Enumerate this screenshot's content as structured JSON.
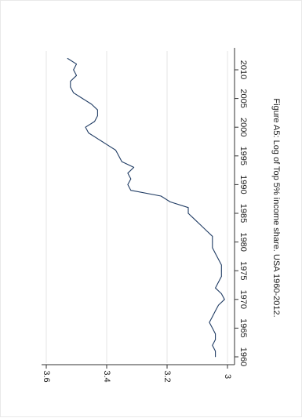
{
  "figure": {
    "caption": "Figure A5: Log of Top 5% income share. USA 1960-2012."
  },
  "colors": {
    "line": "#1f3b63",
    "axis": "#333333",
    "grid": "#e6e6e6",
    "text": "#222222",
    "background": "#ffffff"
  },
  "chart_data": {
    "type": "line",
    "orientation": "rotated 90 degrees clockwise (years run top-to-bottom along the right, values increase right-to-left)",
    "title": "Figure A5: Log of Top 5% income share. USA 1960-2012.",
    "xlabel": "",
    "ylabel": "",
    "xlim": [
      1959,
      2013
    ],
    "ylim": [
      3.0,
      3.6
    ],
    "grid": true,
    "x_ticks": [
      1960,
      1965,
      1970,
      1975,
      1980,
      1985,
      1990,
      1995,
      2000,
      2005,
      2010
    ],
    "y_ticks": [
      3.0,
      3.2,
      3.4,
      3.6
    ],
    "x_tick_labels": [
      "1960",
      "1965",
      "1970",
      "1975",
      "1980",
      "1985",
      "1990",
      "1995",
      "2000",
      "2005",
      "2010"
    ],
    "y_tick_labels": [
      "3",
      "3.2",
      "3.4",
      "3.6"
    ],
    "series": [
      {
        "x": [
          1960,
          1961,
          1962,
          1963,
          1964,
          1965,
          1966,
          1967,
          1968,
          1969,
          1970,
          1971,
          1972,
          1973,
          1974,
          1975,
          1976,
          1977,
          1978,
          1979,
          1980,
          1981,
          1982,
          1983,
          1984,
          1985,
          1986,
          1987,
          1988,
          1989,
          1990,
          1991,
          1992,
          1993,
          1994,
          1995,
          1996,
          1997,
          1998,
          1999,
          2000,
          2001,
          2002,
          2003,
          2004,
          2005,
          2006,
          2007,
          2008,
          2009,
          2010,
          2011,
          2012
        ],
        "y": [
          3.04,
          3.04,
          3.05,
          3.04,
          3.04,
          3.05,
          3.06,
          3.05,
          3.04,
          3.03,
          3.01,
          3.02,
          3.04,
          3.03,
          3.02,
          3.02,
          3.02,
          3.03,
          3.04,
          3.05,
          3.05,
          3.05,
          3.07,
          3.09,
          3.11,
          3.13,
          3.13,
          3.19,
          3.22,
          3.32,
          3.33,
          3.32,
          3.33,
          3.31,
          3.35,
          3.36,
          3.37,
          3.4,
          3.43,
          3.46,
          3.47,
          3.44,
          3.43,
          3.43,
          3.45,
          3.48,
          3.51,
          3.52,
          3.52,
          3.5,
          3.51,
          3.5,
          3.53
        ]
      }
    ]
  }
}
